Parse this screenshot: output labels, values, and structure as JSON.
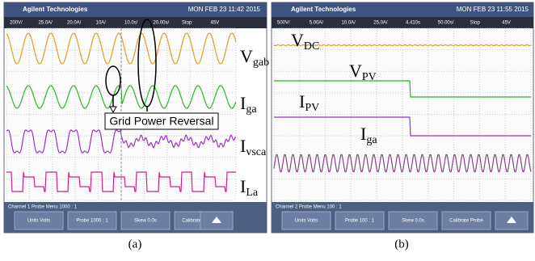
{
  "panels": [
    {
      "caption": "(a)",
      "header": {
        "brand": "Agilent Technologies",
        "timestamp": "MON FEB 23 11:42 2015"
      },
      "settings": [
        "200V/",
        "25.0A/",
        "20.0A/",
        "10A/",
        "10.0s/",
        "20.00s/",
        "Stop",
        "45V"
      ],
      "labels": [
        {
          "main": "V",
          "sub": "gab"
        },
        {
          "main": "I",
          "sub": "ga"
        },
        {
          "main": "I",
          "sub": "vsca"
        },
        {
          "main": "I",
          "sub": "La"
        }
      ],
      "annotation": "Grid Power Reversal",
      "menu": {
        "title": "Channel 1 Probe Menu 1000 : 1",
        "buttons": [
          "Units Volts",
          "Probe 1000 : 1",
          "Skew 0.0s",
          "Calibrate Probe"
        ]
      }
    },
    {
      "caption": "(b)",
      "header": {
        "brand": "Agilent Technologies",
        "timestamp": "MON FEB 23 11:55 2015"
      },
      "settings": [
        "500V/",
        "5.00A/",
        "10.0A/",
        "25.0A/",
        "4.410s",
        "50.00s/",
        "Stop",
        "45V"
      ],
      "labels": [
        {
          "main": "V",
          "sub": "DC"
        },
        {
          "main": "V",
          "sub": "PV"
        },
        {
          "main": "I",
          "sub": "PV"
        },
        {
          "main": "I",
          "sub": "ga"
        }
      ],
      "menu": {
        "title": "Channel 2 Probe Menu 100 : 1",
        "buttons": [
          "Units Volts",
          "Probe 100 : 1",
          "Skew 0.0s",
          "Calibrate Probe"
        ]
      }
    }
  ]
}
